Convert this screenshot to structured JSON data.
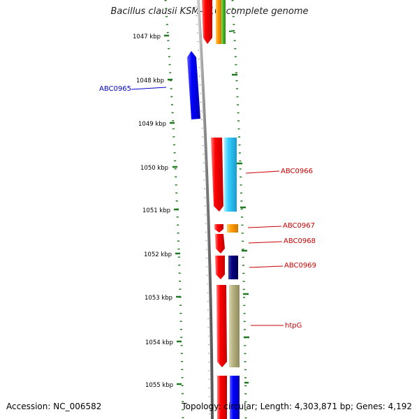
{
  "title": "Bacillus clausii KSM-K16, complete genome",
  "footer": {
    "accession": "Accession: NC_006582",
    "topology": "Topology: circular; Length: 4,303,871 bp; Genes: 4,192"
  },
  "colors": {
    "backbone": "#888888",
    "tick": "#1f7a1f",
    "forward_cds": "#ff0000",
    "reverse_cds": "#0000ff",
    "label_forward": "#cc0000",
    "label_reverse": "#0000cc"
  },
  "ticks": [
    "1047 kbp",
    "1048 kbp",
    "1049 kbp",
    "1050 kbp",
    "1051 kbp",
    "1052 kbp",
    "1053 kbp",
    "1054 kbp",
    "1055 kbp"
  ],
  "genes": [
    {
      "name": "ABC0965",
      "strand": "reverse",
      "cog_color": "#0000ff"
    },
    {
      "name": "ABC0966",
      "strand": "forward",
      "cog_color": "#33ccff"
    },
    {
      "name": "ABC0967",
      "strand": "forward",
      "cog_color": "#ff9900"
    },
    {
      "name": "ABC0968",
      "strand": "forward",
      "cog_color": ""
    },
    {
      "name": "ABC0969",
      "strand": "forward",
      "cog_color": "#000080"
    },
    {
      "name": "htpG",
      "strand": "forward",
      "cog_color": "#b5b080"
    }
  ]
}
